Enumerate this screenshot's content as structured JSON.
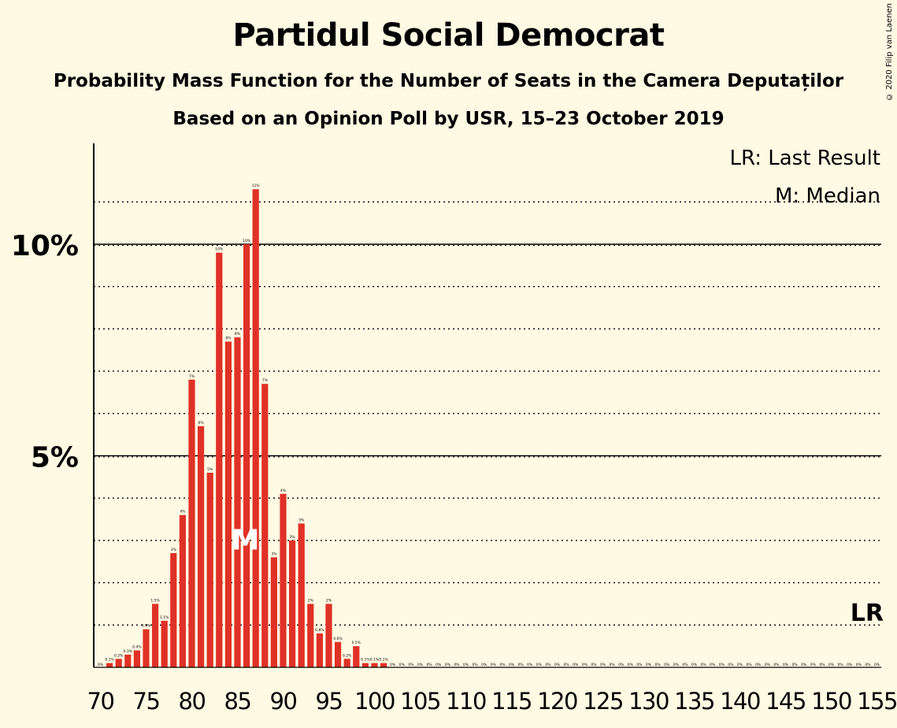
{
  "title": "Partidul Social Democrat",
  "subtitle1": "Probability Mass Function for the Number of Seats in the Camera Deputaților",
  "subtitle2": "Based on an Opinion Poll by USR, 15–23 October 2019",
  "copyright": "© 2020 Filip van Laenen",
  "legend": {
    "last_result": "LR: Last Result",
    "median": "M: Median"
  },
  "colors": {
    "bar": "#e03127",
    "background": "#fffae3"
  },
  "chart_data": {
    "type": "bar",
    "x": [
      70,
      71,
      72,
      73,
      74,
      75,
      76,
      77,
      78,
      79,
      80,
      81,
      82,
      83,
      84,
      85,
      86,
      87,
      88,
      89,
      90,
      91,
      92,
      93,
      94,
      95,
      96,
      97,
      98,
      99,
      100,
      101,
      102,
      103,
      104,
      105,
      106,
      107,
      108,
      109,
      110,
      111,
      112,
      113,
      114,
      115,
      116,
      117,
      118,
      119,
      120,
      121,
      122,
      123,
      124,
      125,
      126,
      127,
      128,
      129,
      130,
      131,
      132,
      133,
      134,
      135,
      136,
      137,
      138,
      139,
      140,
      141,
      142,
      143,
      144,
      145,
      146,
      147,
      148,
      149,
      150,
      151,
      152,
      153,
      154,
      155
    ],
    "values": [
      0,
      0.1,
      0.2,
      0.3,
      0.4,
      0.9,
      1.5,
      1.1,
      2.7,
      3.6,
      6.8,
      5.7,
      4.6,
      9.8,
      7.7,
      7.8,
      10.0,
      11.3,
      6.7,
      2.6,
      4.1,
      3.0,
      3.4,
      1.5,
      0.8,
      1.5,
      0.6,
      0.2,
      0.5,
      0.1,
      0.1,
      0.1,
      0,
      0,
      0,
      0,
      0,
      0,
      0,
      0,
      0,
      0,
      0,
      0,
      0,
      0,
      0,
      0,
      0,
      0,
      0,
      0,
      0,
      0,
      0,
      0,
      0,
      0,
      0,
      0,
      0,
      0,
      0,
      0,
      0,
      0,
      0,
      0,
      0,
      0,
      0,
      0,
      0,
      0,
      0,
      0,
      0,
      0,
      0,
      0,
      0,
      0,
      0,
      0,
      0,
      0
    ],
    "data_labels": [
      "0%",
      "0.1%",
      "0.2%",
      "0.3%",
      "0.4%",
      "0.9%",
      "1.5%",
      "1.1%",
      "3%",
      "4%",
      "7%",
      "6%",
      "5%",
      "10%",
      "8%",
      "8%",
      "10%",
      "11%",
      "7%",
      "3%",
      "4%",
      "3%",
      "3%",
      "2%",
      "0.8%",
      "2%",
      "0.6%",
      "0.2%",
      "0.5%",
      "0.1%",
      "0.1%",
      "0.1%",
      "0%",
      "0%",
      "0%",
      "0%",
      "0%",
      "0%",
      "0%",
      "0%",
      "0%",
      "0%",
      "0%",
      "0%",
      "0%",
      "0%",
      "0%",
      "0%",
      "0%",
      "0%",
      "0%",
      "0%",
      "0%",
      "0%",
      "0%",
      "0%",
      "0%",
      "0%",
      "0%",
      "0%",
      "0%",
      "0%",
      "0%",
      "0%",
      "0%",
      "0%",
      "0%",
      "0%",
      "0%",
      "0%",
      "0%",
      "0%",
      "0%",
      "0%",
      "0%",
      "0%",
      "0%",
      "0%",
      "0%",
      "0%",
      "0%",
      "0%",
      "0%",
      "0%",
      "0%",
      "0%"
    ],
    "x_ticks": [
      70,
      75,
      80,
      85,
      90,
      95,
      100,
      105,
      110,
      115,
      120,
      125,
      130,
      135,
      140,
      145,
      150,
      155
    ],
    "y_ticks": [
      {
        "value": 5,
        "label": "5%"
      },
      {
        "value": 10,
        "label": "10%"
      }
    ],
    "ylim": [
      0,
      12.4
    ],
    "xlim": [
      69.5,
      155.5
    ],
    "median": 85,
    "median_label": "M",
    "last_result_label": "LR",
    "grid": "dotted every 1%, solid at 5% and 10%"
  }
}
